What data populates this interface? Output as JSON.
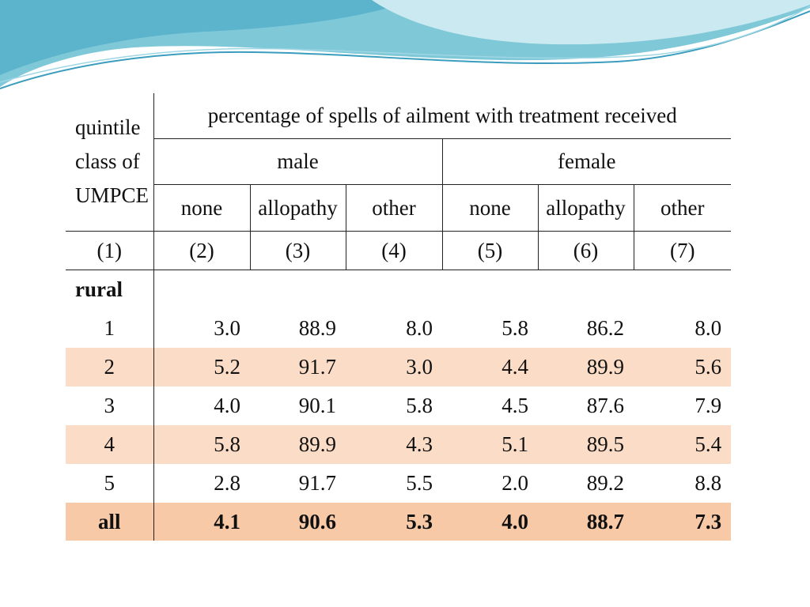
{
  "table": {
    "corner_label_lines": [
      "quintile",
      "class of",
      "UMPCE"
    ],
    "top_header": "percentage of spells of ailment with treatment received",
    "groups": [
      "male",
      "female"
    ],
    "subheaders": [
      "none",
      "allopathy",
      "other",
      "none",
      "allopathy",
      "other"
    ],
    "column_numbers": [
      "(1)",
      "(2)",
      "(3)",
      "(4)",
      "(5)",
      "(6)",
      "(7)"
    ],
    "section_label": "rural",
    "rows": [
      {
        "label": "1",
        "values": [
          "3.0",
          "88.9",
          "8.0",
          "5.8",
          "86.2",
          "8.0"
        ]
      },
      {
        "label": "2",
        "values": [
          "5.2",
          "91.7",
          "3.0",
          "4.4",
          "89.9",
          "5.6"
        ]
      },
      {
        "label": "3",
        "values": [
          "4.0",
          "90.1",
          "5.8",
          "4.5",
          "87.6",
          "7.9"
        ]
      },
      {
        "label": "4",
        "values": [
          "5.8",
          "89.9",
          "4.3",
          "5.1",
          "89.5",
          "5.4"
        ]
      },
      {
        "label": "5",
        "values": [
          "2.8",
          "91.7",
          "5.5",
          "2.0",
          "89.2",
          "8.8"
        ]
      },
      {
        "label": "all",
        "values": [
          "4.1",
          "90.6",
          "5.3",
          "4.0",
          "88.7",
          "7.3"
        ]
      }
    ]
  },
  "colors": {
    "banner_light": "#cbe9f0",
    "banner_mid": "#7ec8d8",
    "banner_dark": "#3a9dbd",
    "row_highlight": "#fbdcc6",
    "row_total": "#f7c9a6"
  }
}
